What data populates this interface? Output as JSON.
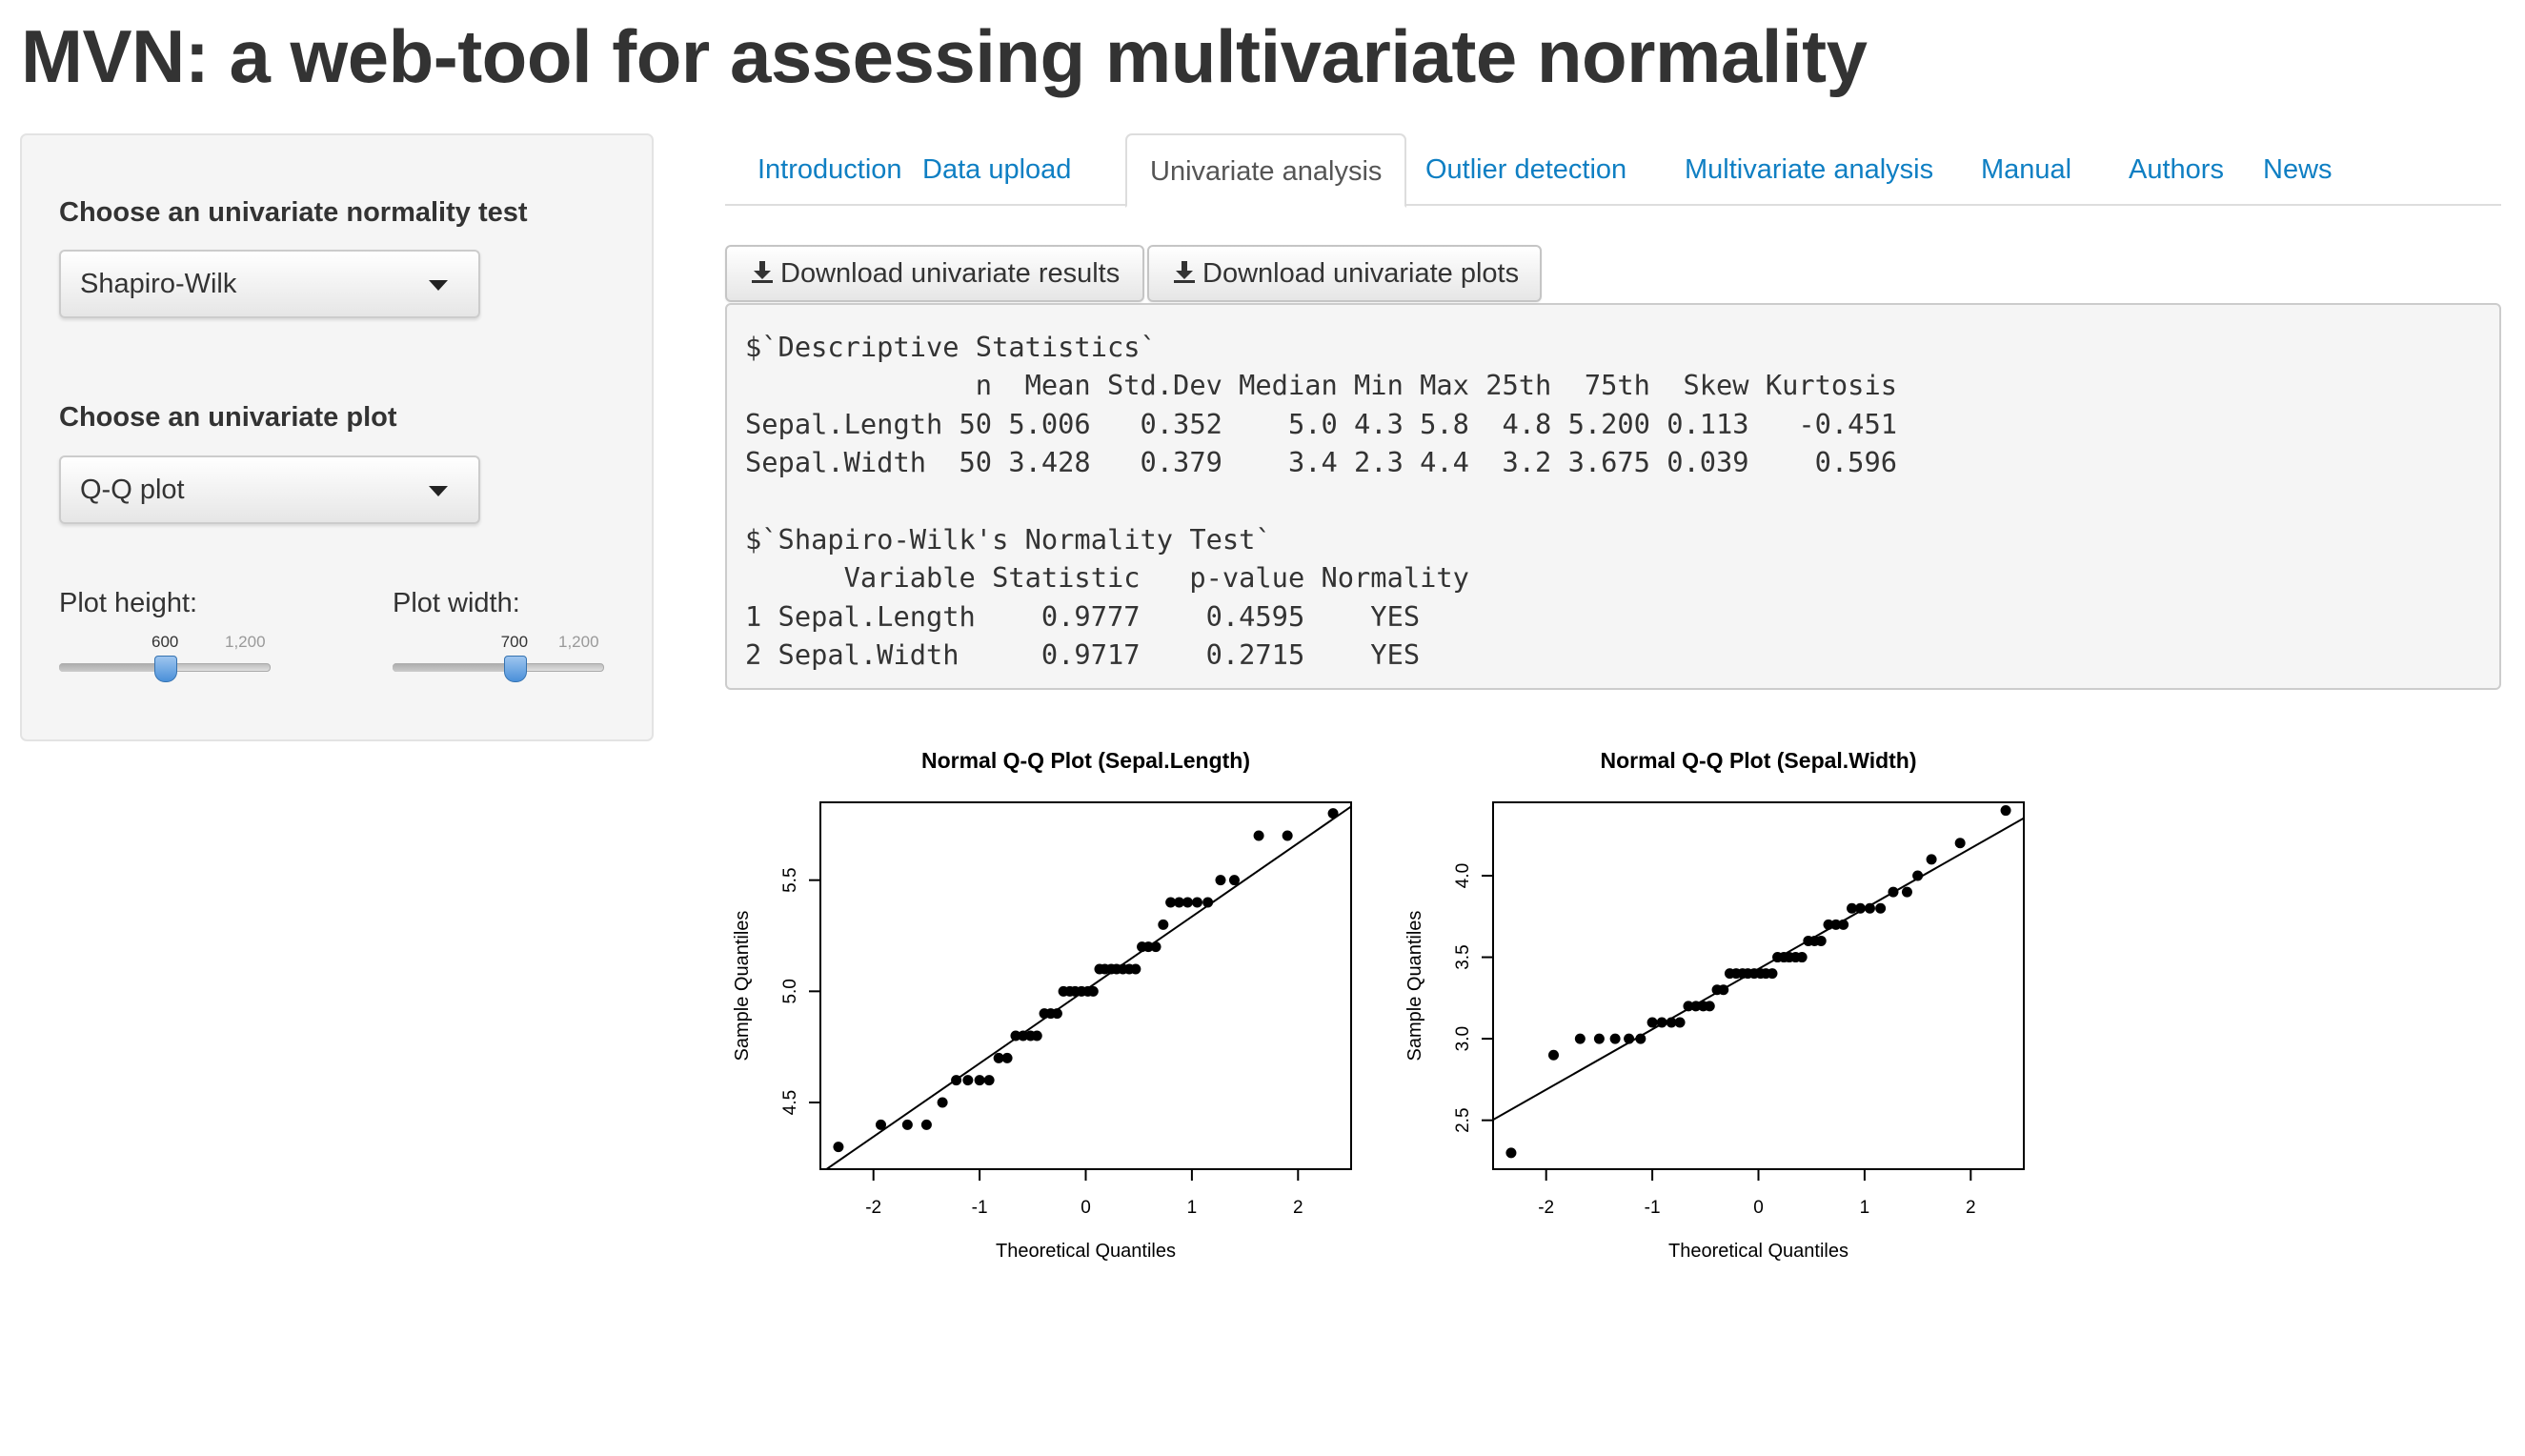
{
  "app": {
    "title": "MVN: a web-tool for assessing multivariate normality"
  },
  "sidebar": {
    "test_label": "Choose an univariate normality test",
    "test_value": "Shapiro-Wilk",
    "plot_label": "Choose an univariate plot",
    "plot_value": "Q-Q plot",
    "height_slider": {
      "label": "Plot height:",
      "value": "600",
      "max_label": "1,200",
      "value_num": 600,
      "min": 0,
      "max": 1200
    },
    "width_slider": {
      "label": "Plot width:",
      "value": "700",
      "max_label": "1,200",
      "value_num": 700,
      "min": 0,
      "max": 1200
    }
  },
  "tabs": [
    {
      "label": "Introduction",
      "active": false
    },
    {
      "label": "Data upload",
      "active": false
    },
    {
      "label": "Univariate analysis",
      "active": true
    },
    {
      "label": "Outlier detection",
      "active": false
    },
    {
      "label": "Multivariate analysis",
      "active": false
    },
    {
      "label": "Manual",
      "active": false
    },
    {
      "label": "Authors",
      "active": false
    },
    {
      "label": "News",
      "active": false
    }
  ],
  "buttons": {
    "download_results": "Download univariate results",
    "download_plots": "Download univariate plots"
  },
  "output_lines": [
    "$`Descriptive Statistics`",
    "              n  Mean Std.Dev Median Min Max 25th  75th  Skew Kurtosis",
    "Sepal.Length 50 5.006   0.352    5.0 4.3 5.8  4.8 5.200 0.113   -0.451",
    "Sepal.Width  50 3.428   0.379    3.4 2.3 4.4  3.2 3.675 0.039    0.596",
    "",
    "$`Shapiro-Wilk's Normality Test`",
    "      Variable Statistic   p-value Normality",
    "1 Sepal.Length    0.9777    0.4595    YES",
    "2 Sepal.Width     0.9717    0.2715    YES"
  ],
  "colors": {
    "link": "#0f7fc3",
    "panel_bg": "#f5f5f5",
    "handle": "#4a90d9"
  },
  "chart_data": [
    {
      "type": "scatter",
      "title": "Normal Q-Q Plot (Sepal.Length)",
      "xlabel": "Theoretical Quantiles",
      "ylabel": "Sample Quantiles",
      "xlim": [
        -2.5,
        2.5
      ],
      "ylim": [
        4.2,
        5.85
      ],
      "xticks": [
        "-2",
        "-1",
        "0",
        "1",
        "2"
      ],
      "xtick_values": [
        -2,
        -1,
        0,
        1,
        2
      ],
      "yticks": [
        "4.5",
        "5.0",
        "5.5"
      ],
      "ytick_values": [
        4.5,
        5.0,
        5.5
      ],
      "x": [
        -2.33,
        -1.93,
        -1.68,
        -1.5,
        -1.35,
        -1.22,
        -1.11,
        -1.0,
        -0.91,
        -0.82,
        -0.74,
        -0.66,
        -0.59,
        -0.52,
        -0.46,
        -0.39,
        -0.33,
        -0.27,
        -0.21,
        -0.15,
        -0.1,
        -0.04,
        0.02,
        0.07,
        0.13,
        0.18,
        0.24,
        0.29,
        0.35,
        0.41,
        0.47,
        0.53,
        0.59,
        0.66,
        0.73,
        0.8,
        0.88,
        0.96,
        1.05,
        1.15,
        1.27,
        1.4,
        1.63,
        1.9,
        2.33
      ],
      "y": [
        4.3,
        4.4,
        4.4,
        4.4,
        4.5,
        4.6,
        4.6,
        4.6,
        4.6,
        4.7,
        4.7,
        4.8,
        4.8,
        4.8,
        4.8,
        4.9,
        4.9,
        4.9,
        5.0,
        5.0,
        5.0,
        5.0,
        5.0,
        5.0,
        5.1,
        5.1,
        5.1,
        5.1,
        5.1,
        5.1,
        5.1,
        5.2,
        5.2,
        5.2,
        5.3,
        5.4,
        5.4,
        5.4,
        5.4,
        5.4,
        5.5,
        5.5,
        5.7,
        5.7,
        5.8
      ],
      "qq_line": {
        "intercept": 5.006,
        "slope": 0.33
      }
    },
    {
      "type": "scatter",
      "title": "Normal Q-Q Plot (Sepal.Width)",
      "xlabel": "Theoretical Quantiles",
      "ylabel": "Sample Quantiles",
      "xlim": [
        -2.5,
        2.5
      ],
      "ylim": [
        2.2,
        4.45
      ],
      "xticks": [
        "-2",
        "-1",
        "0",
        "1",
        "2"
      ],
      "xtick_values": [
        -2,
        -1,
        0,
        1,
        2
      ],
      "yticks": [
        "2.5",
        "3.0",
        "3.5",
        "4.0"
      ],
      "ytick_values": [
        2.5,
        3.0,
        3.5,
        4.0
      ],
      "x": [
        -2.33,
        -1.93,
        -1.68,
        -1.5,
        -1.35,
        -1.22,
        -1.11,
        -1.0,
        -0.91,
        -0.82,
        -0.74,
        -0.66,
        -0.59,
        -0.52,
        -0.46,
        -0.39,
        -0.33,
        -0.27,
        -0.21,
        -0.15,
        -0.1,
        -0.04,
        0.02,
        0.07,
        0.13,
        0.18,
        0.24,
        0.29,
        0.35,
        0.41,
        0.47,
        0.53,
        0.59,
        0.66,
        0.73,
        0.8,
        0.88,
        0.96,
        1.05,
        1.15,
        1.27,
        1.4,
        1.5,
        1.63,
        1.9,
        2.33
      ],
      "y": [
        2.3,
        2.9,
        3.0,
        3.0,
        3.0,
        3.0,
        3.0,
        3.1,
        3.1,
        3.1,
        3.1,
        3.2,
        3.2,
        3.2,
        3.2,
        3.3,
        3.3,
        3.4,
        3.4,
        3.4,
        3.4,
        3.4,
        3.4,
        3.4,
        3.4,
        3.5,
        3.5,
        3.5,
        3.5,
        3.5,
        3.6,
        3.6,
        3.6,
        3.7,
        3.7,
        3.7,
        3.8,
        3.8,
        3.8,
        3.8,
        3.9,
        3.9,
        4.0,
        4.1,
        4.2,
        4.4
      ],
      "qq_line": {
        "intercept": 3.428,
        "slope": 0.37
      }
    }
  ]
}
